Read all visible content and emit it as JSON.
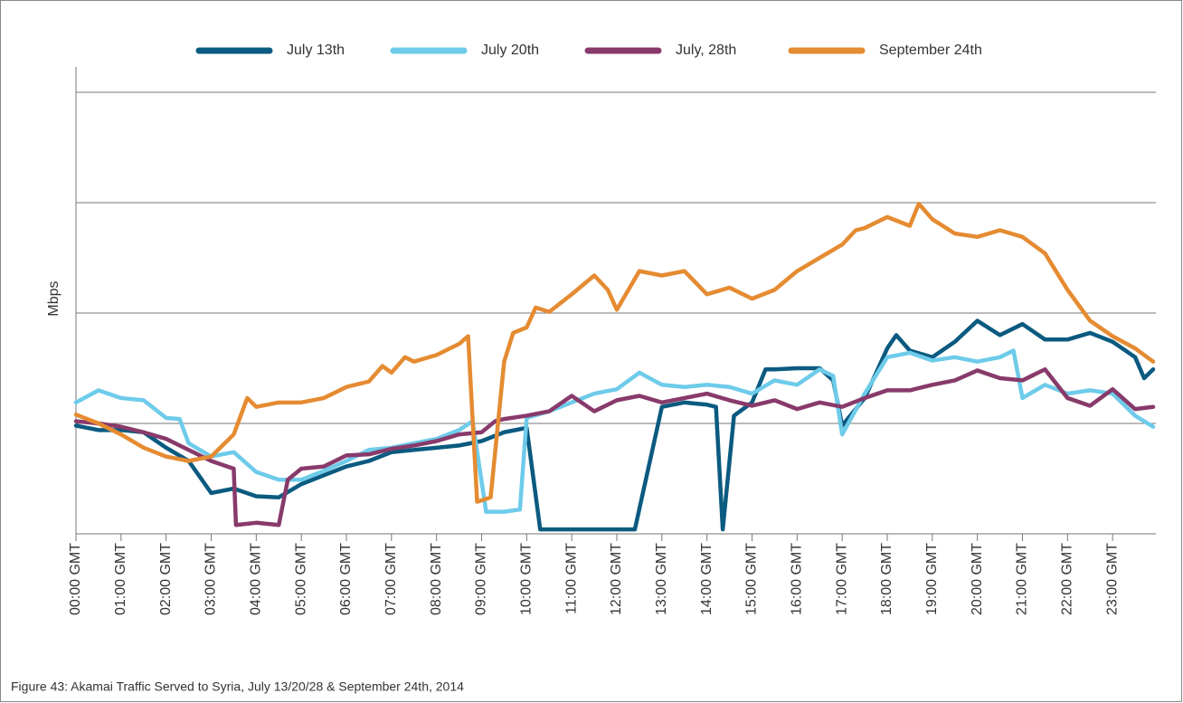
{
  "chart_data": {
    "type": "line",
    "caption": "Figure 43: Akamai Traffic Served to Syria, July 13/20/28 & September 24th, 2014",
    "y_label": "Mbps",
    "xlim": [
      0,
      24
    ],
    "ylim": [
      0,
      4
    ],
    "yticks": [
      0,
      1,
      2,
      3,
      4
    ],
    "grid": true,
    "legend": "top",
    "xticks": [
      {
        "value": 0,
        "label": "00:00 GMT"
      },
      {
        "value": 1,
        "label": "01:00 GMT"
      },
      {
        "value": 2,
        "label": "02:00 GMT"
      },
      {
        "value": 3,
        "label": "03:00 GMT"
      },
      {
        "value": 4,
        "label": "04:00 GMT"
      },
      {
        "value": 5,
        "label": "05:00 GMT"
      },
      {
        "value": 6,
        "label": "06:00 GMT"
      },
      {
        "value": 7,
        "label": "07:00 GMT"
      },
      {
        "value": 8,
        "label": "08:00 GMT"
      },
      {
        "value": 9,
        "label": "09:00 GMT"
      },
      {
        "value": 10,
        "label": "10:00 GMT"
      },
      {
        "value": 11,
        "label": "11:00 GMT"
      },
      {
        "value": 12,
        "label": "12:00 GMT"
      },
      {
        "value": 13,
        "label": "13:00 GMT"
      },
      {
        "value": 14,
        "label": "14:00 GMT"
      },
      {
        "value": 15,
        "label": "15:00 GMT"
      },
      {
        "value": 16,
        "label": "16:00 GMT"
      },
      {
        "value": 17,
        "label": "17:00 GMT"
      },
      {
        "value": 18,
        "label": "18:00 GMT"
      },
      {
        "value": 19,
        "label": "19:00 GMT"
      },
      {
        "value": 20,
        "label": "20:00 GMT"
      },
      {
        "value": 21,
        "label": "21:00 GMT"
      },
      {
        "value": 22,
        "label": "22:00 GMT"
      },
      {
        "value": 23,
        "label": "23:00 GMT"
      }
    ],
    "series": [
      {
        "name": "July 13th",
        "color": "#0b5a80",
        "x": [
          0,
          0.5,
          1,
          1.5,
          2,
          2.5,
          3,
          3.5,
          4,
          4.5,
          5,
          5.5,
          6,
          6.5,
          7,
          7.5,
          8,
          8.5,
          9,
          9.5,
          10,
          10.3,
          11,
          12,
          12.4,
          13,
          13.5,
          14,
          14.2,
          14.35,
          14.6,
          15,
          15.3,
          15.5,
          16,
          16.5,
          16.8,
          17,
          17.5,
          18,
          18.2,
          18.5,
          19,
          19.5,
          20,
          20.5,
          21,
          21.5,
          22,
          22.5,
          23,
          23.5,
          23.7,
          23.9
        ],
        "values": [
          0.98,
          0.94,
          0.94,
          0.92,
          0.78,
          0.66,
          0.37,
          0.41,
          0.34,
          0.33,
          0.45,
          0.53,
          0.61,
          0.66,
          0.74,
          0.76,
          0.78,
          0.8,
          0.84,
          0.92,
          0.96,
          0.04,
          0.04,
          0.04,
          0.04,
          1.15,
          1.19,
          1.17,
          1.15,
          0.04,
          1.07,
          1.19,
          1.49,
          1.49,
          1.5,
          1.5,
          1.39,
          0.98,
          1.23,
          1.68,
          1.8,
          1.66,
          1.6,
          1.74,
          1.93,
          1.8,
          1.9,
          1.76,
          1.76,
          1.82,
          1.74,
          1.6,
          1.41,
          1.49
        ]
      },
      {
        "name": "July 20th",
        "color": "#6ecbea",
        "x": [
          0,
          0.5,
          1,
          1.5,
          2,
          2.3,
          2.5,
          3,
          3.5,
          4,
          4.5,
          5,
          5.5,
          6,
          6.5,
          7,
          7.5,
          8,
          8.5,
          8.8,
          9.1,
          9.5,
          9.85,
          10,
          10.5,
          11,
          11.5,
          12,
          12.5,
          13,
          13.5,
          14,
          14.5,
          15,
          15.5,
          16,
          16.5,
          16.8,
          17,
          17.5,
          18,
          18.5,
          19,
          19.5,
          20,
          20.5,
          20.8,
          21,
          21.5,
          22,
          22.5,
          23,
          23.5,
          23.9
        ],
        "values": [
          1.19,
          1.3,
          1.23,
          1.21,
          1.05,
          1.04,
          0.82,
          0.7,
          0.74,
          0.56,
          0.49,
          0.49,
          0.57,
          0.66,
          0.76,
          0.78,
          0.82,
          0.86,
          0.94,
          1.02,
          0.2,
          0.2,
          0.22,
          1.05,
          1.11,
          1.19,
          1.27,
          1.31,
          1.46,
          1.35,
          1.33,
          1.35,
          1.33,
          1.27,
          1.39,
          1.35,
          1.49,
          1.43,
          0.9,
          1.27,
          1.6,
          1.64,
          1.57,
          1.6,
          1.56,
          1.6,
          1.66,
          1.23,
          1.35,
          1.27,
          1.3,
          1.27,
          1.07,
          0.97
        ]
      },
      {
        "name": "July, 28th",
        "color": "#883a6b",
        "x": [
          0,
          0.5,
          1,
          1.5,
          2,
          2.5,
          3,
          3.5,
          3.55,
          4,
          4.5,
          4.7,
          5,
          5.5,
          6,
          6.5,
          7,
          7.5,
          8,
          8.5,
          9,
          9.3,
          9.5,
          10,
          10.5,
          11,
          11.5,
          12,
          12.5,
          13,
          13.5,
          14,
          14.5,
          15,
          15.5,
          16,
          16.5,
          17,
          17.5,
          18,
          18.5,
          19,
          19.5,
          20,
          20.5,
          21,
          21.5,
          22,
          22.5,
          23,
          23.5,
          23.9
        ],
        "values": [
          1.02,
          1.0,
          0.97,
          0.92,
          0.86,
          0.76,
          0.66,
          0.59,
          0.08,
          0.1,
          0.08,
          0.49,
          0.59,
          0.61,
          0.71,
          0.72,
          0.77,
          0.8,
          0.84,
          0.9,
          0.92,
          1.02,
          1.04,
          1.07,
          1.11,
          1.25,
          1.11,
          1.21,
          1.25,
          1.19,
          1.23,
          1.27,
          1.21,
          1.16,
          1.21,
          1.13,
          1.19,
          1.15,
          1.23,
          1.3,
          1.3,
          1.35,
          1.39,
          1.48,
          1.41,
          1.39,
          1.49,
          1.23,
          1.16,
          1.31,
          1.13,
          1.15
        ]
      },
      {
        "name": "September 24th",
        "color": "#e58b32",
        "x": [
          0,
          0.5,
          1,
          1.5,
          2,
          2.5,
          3,
          3.5,
          3.8,
          4,
          4.5,
          5,
          5.5,
          6,
          6.5,
          6.8,
          7,
          7.3,
          7.5,
          8,
          8.5,
          8.7,
          8.9,
          9.2,
          9.5,
          9.7,
          10,
          10.2,
          10.5,
          11,
          11.5,
          11.8,
          12,
          12.5,
          13,
          13.5,
          14,
          14.5,
          15,
          15.5,
          16,
          16.5,
          17,
          17.3,
          17.5,
          18,
          18.5,
          18.7,
          19,
          19.5,
          20,
          20.5,
          21,
          21.5,
          22,
          22.5,
          23,
          23.5,
          23.9
        ],
        "values": [
          1.08,
          1.0,
          0.9,
          0.78,
          0.7,
          0.66,
          0.7,
          0.9,
          1.23,
          1.15,
          1.19,
          1.19,
          1.23,
          1.33,
          1.38,
          1.52,
          1.46,
          1.6,
          1.56,
          1.62,
          1.72,
          1.79,
          0.29,
          0.33,
          1.56,
          1.82,
          1.87,
          2.05,
          2.01,
          2.17,
          2.34,
          2.21,
          2.03,
          2.38,
          2.34,
          2.38,
          2.17,
          2.23,
          2.13,
          2.21,
          2.38,
          2.5,
          2.62,
          2.75,
          2.77,
          2.87,
          2.79,
          2.99,
          2.85,
          2.72,
          2.69,
          2.75,
          2.69,
          2.54,
          2.21,
          1.93,
          1.79,
          1.68,
          1.56
        ]
      }
    ]
  }
}
